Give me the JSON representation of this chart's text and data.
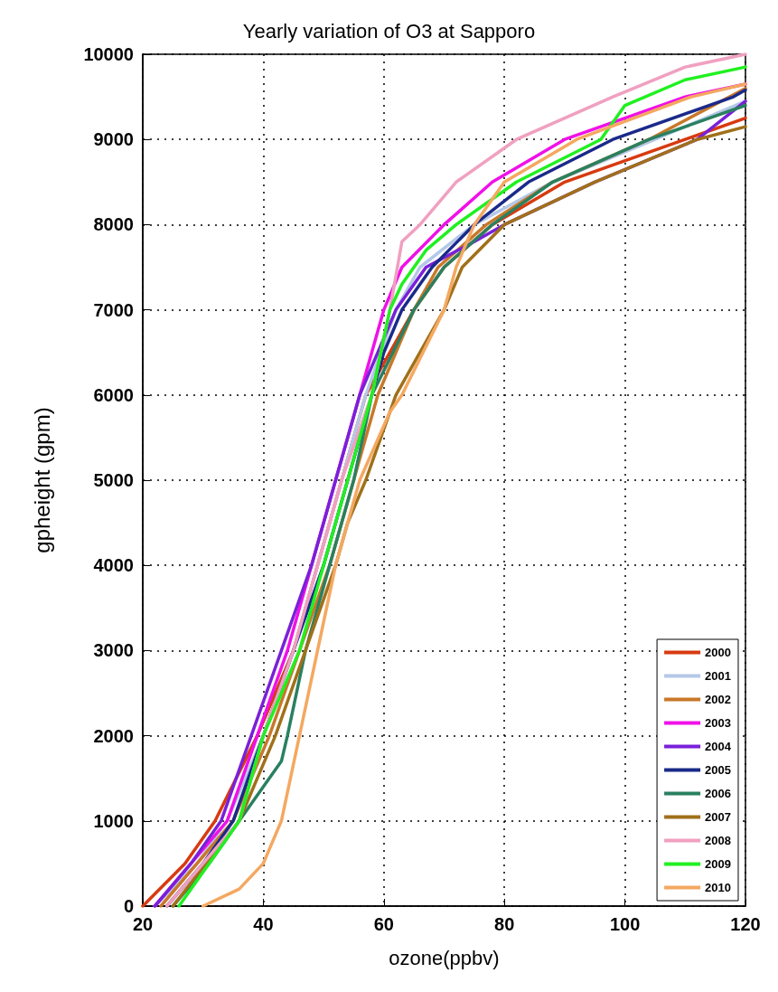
{
  "chart_data": {
    "type": "line",
    "title": "Yearly variation of O3 at Sapporo",
    "xlabel": "ozone(ppbv)",
    "ylabel": "gpheight (gpm)",
    "xlim": [
      20,
      120
    ],
    "xticks": [
      20,
      40,
      60,
      80,
      100,
      120
    ],
    "ylim": [
      0,
      10000
    ],
    "yticks": [
      0,
      1000,
      2000,
      3000,
      4000,
      5000,
      6000,
      7000,
      8000,
      9000,
      10000
    ],
    "grid": true,
    "legend": "bottom right",
    "marker": "none",
    "line_style": "solid",
    "series": [
      {
        "name": "2000",
        "color": "#d83a10",
        "x": [
          20,
          27,
          32,
          39,
          42,
          45,
          49,
          53,
          57,
          65,
          70,
          78,
          90,
          110,
          120
        ],
        "values": [
          0,
          500,
          1000,
          2000,
          2500,
          3000,
          4000,
          5000,
          6000,
          7000,
          7500,
          8000,
          8500,
          9000,
          9250
        ]
      },
      {
        "name": "2001",
        "color": "#b4c8e8",
        "x": [
          22,
          29,
          34,
          40,
          45,
          49,
          53,
          57,
          62,
          66,
          75,
          88,
          105,
          120
        ],
        "values": [
          0,
          500,
          1000,
          2000,
          3000,
          4000,
          5000,
          6000,
          7000,
          7500,
          8000,
          8500,
          9000,
          9450
        ]
      },
      {
        "name": "2002",
        "color": "#c8782a",
        "x": [
          23,
          35,
          41,
          46,
          51,
          55,
          59,
          65,
          69,
          77,
          88,
          104,
          120
        ],
        "values": [
          0,
          1000,
          2000,
          3000,
          4000,
          5000,
          6000,
          7000,
          7500,
          8000,
          8500,
          9000,
          9600
        ]
      },
      {
        "name": "2003",
        "color": "#f010e8",
        "x": [
          22,
          28,
          34,
          39,
          44,
          48,
          52,
          56,
          60,
          63,
          70,
          78,
          90,
          110,
          120
        ],
        "values": [
          0,
          500,
          1000,
          2000,
          3000,
          4000,
          5000,
          6000,
          7000,
          7500,
          8000,
          8500,
          9000,
          9500,
          9650
        ]
      },
      {
        "name": "2004",
        "color": "#7a20d8",
        "x": [
          22,
          28,
          33,
          38,
          43,
          48,
          52,
          56,
          62,
          67,
          75,
          80,
          95,
          112,
          120
        ],
        "values": [
          0,
          500,
          1000,
          2000,
          3000,
          4000,
          5000,
          6000,
          7000,
          7500,
          7800,
          8000,
          8500,
          9000,
          9450
        ]
      },
      {
        "name": "2005",
        "color": "#1a2a8a",
        "x": [
          24,
          30,
          35,
          40,
          45,
          50,
          54,
          58,
          60,
          63,
          68,
          75,
          84,
          98,
          118,
          120
        ],
        "values": [
          0,
          500,
          1000,
          2000,
          3000,
          4000,
          5000,
          6000,
          6500,
          7000,
          7500,
          8000,
          8500,
          9000,
          9500,
          9580
        ]
      },
      {
        "name": "2006",
        "color": "#2a8060",
        "x": [
          25,
          31,
          36,
          43,
          44,
          47,
          51,
          55,
          58,
          65,
          70,
          78,
          88,
          104,
          120
        ],
        "values": [
          0,
          500,
          1000,
          1700,
          2000,
          3000,
          4000,
          5000,
          6000,
          7000,
          7500,
          8000,
          8500,
          9000,
          9400
        ]
      },
      {
        "name": "2007",
        "color": "#a0701a",
        "x": [
          25,
          36,
          42,
          47,
          52,
          54,
          57,
          62,
          66,
          70,
          73,
          80,
          95,
          112,
          120
        ],
        "values": [
          0,
          1000,
          2000,
          3000,
          4000,
          4500,
          5000,
          6000,
          6500,
          7000,
          7500,
          8000,
          8500,
          9000,
          9150
        ]
      },
      {
        "name": "2008",
        "color": "#f0a0c0",
        "x": [
          24,
          30,
          36,
          40,
          45,
          49,
          53,
          58,
          61,
          63,
          66,
          72,
          82,
          98,
          110,
          120
        ],
        "values": [
          0,
          500,
          1000,
          2000,
          3000,
          4000,
          5000,
          6000,
          7000,
          7800,
          8000,
          8500,
          9000,
          9500,
          9850,
          10000
        ]
      },
      {
        "name": "2009",
        "color": "#20f020",
        "x": [
          26,
          31,
          36,
          40,
          46,
          50,
          54,
          58,
          61,
          63,
          67,
          72,
          82,
          96,
          100,
          110,
          120
        ],
        "values": [
          0,
          500,
          1000,
          2000,
          3000,
          4000,
          5000,
          6000,
          7000,
          7300,
          7700,
          8000,
          8500,
          9000,
          9400,
          9700,
          9850
        ]
      },
      {
        "name": "2010",
        "color": "#f4a860",
        "x": [
          30,
          36,
          40,
          43,
          46,
          49,
          52,
          56,
          61,
          63,
          70,
          72,
          75,
          80,
          92,
          111,
          120
        ],
        "values": [
          0,
          200,
          500,
          1000,
          2000,
          3000,
          4000,
          5000,
          5800,
          6000,
          7000,
          7500,
          8000,
          8500,
          9000,
          9500,
          9650
        ]
      }
    ]
  }
}
